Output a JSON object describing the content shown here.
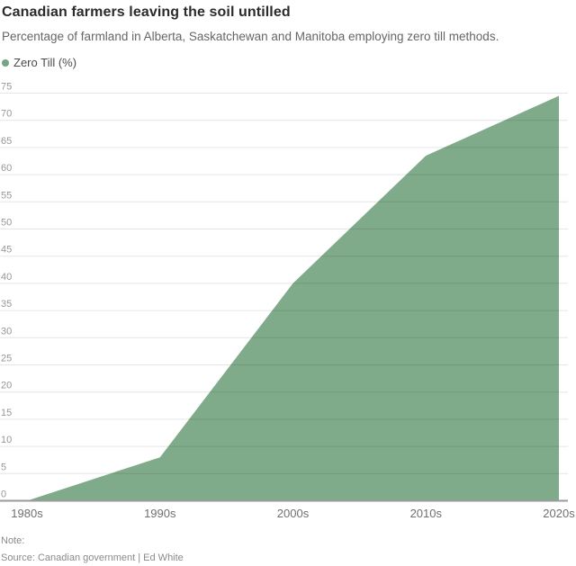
{
  "header": {
    "title": "Canadian farmers leaving the soil untilled",
    "subtitle": "Percentage of farmland in Alberta, Saskatchewan and Manitoba employing zero till methods."
  },
  "legend": {
    "label": "Zero Till (%)",
    "dot_color": "#74a483"
  },
  "chart_data": {
    "type": "area",
    "title": "Canadian farmers leaving the soil untilled",
    "subtitle": "Percentage of farmland in Alberta, Saskatchewan and Manitoba employing zero till methods.",
    "categories": [
      "1980s",
      "1990s",
      "2000s",
      "2010s",
      "2020s"
    ],
    "series": [
      {
        "name": "Zero Till (%)",
        "values": [
          0,
          8,
          40,
          63.5,
          74.5
        ]
      }
    ],
    "xlabel": "",
    "ylabel": "Zero Till (%)",
    "ylim": [
      0,
      75
    ],
    "ytick_step": 5,
    "grid": true,
    "legend_position": "top-left",
    "area_color": "#7fab8a",
    "grid_color": "#000000",
    "grid_opacity": 0.1,
    "baseline_color": "#9a9a9a",
    "ytick_color": "#979797",
    "xtick_color": "#6f6f6f"
  },
  "footer": {
    "note_label": "Note:",
    "source": "Source: Canadian government | Ed White"
  }
}
